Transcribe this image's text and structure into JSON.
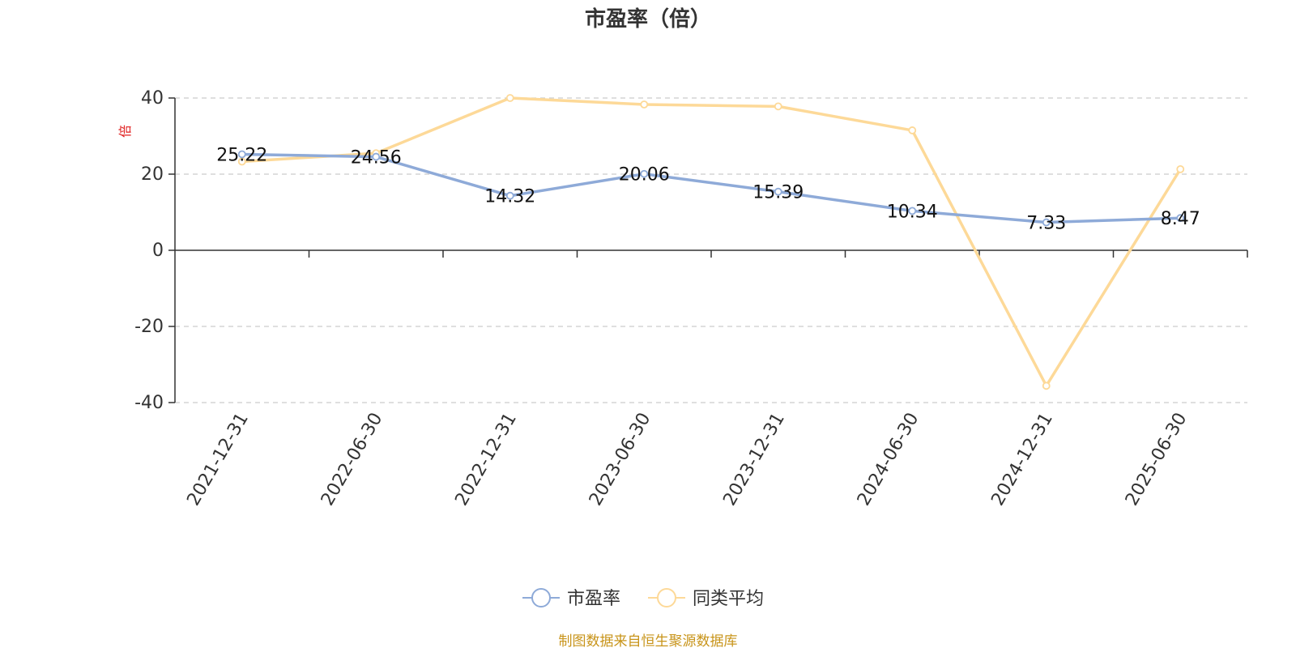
{
  "colors": {
    "series_pe": "#8eaad8",
    "series_peer": "#fdd998",
    "ylabel": "#e02020",
    "source": "#c8941a",
    "grid": "#cccccc"
  },
  "source_text": "制图数据来自恒生聚源数据库",
  "chart_data": {
    "type": "line",
    "title": "市盈率（倍）",
    "ylabel": "倍",
    "xlabel": "",
    "ylim": [
      -40,
      40
    ],
    "yticks": [
      40,
      20,
      0,
      -20,
      -40
    ],
    "grid": true,
    "legend_position": "bottom-center",
    "x": [
      "2021-12-31",
      "2022-06-30",
      "2022-12-31",
      "2023-06-30",
      "2023-12-31",
      "2024-06-30",
      "2024-12-31",
      "2025-06-30"
    ],
    "series": [
      {
        "name": "市盈率",
        "values": [
          25.22,
          24.56,
          14.32,
          20.06,
          15.39,
          10.34,
          7.33,
          8.47
        ],
        "labels": [
          "25.22",
          "24.56",
          "14.32",
          "20.06",
          "15.39",
          "10.34",
          "7.33",
          "8.47"
        ],
        "color_key": "series_pe"
      },
      {
        "name": "同类平均",
        "values": [
          23.3,
          25.5,
          40.0,
          38.3,
          37.8,
          31.5,
          -35.6,
          21.3
        ],
        "color_key": "series_peer"
      }
    ]
  }
}
